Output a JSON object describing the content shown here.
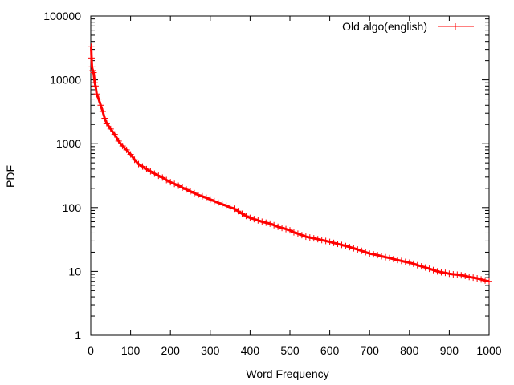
{
  "chart_data": {
    "type": "line",
    "title": "",
    "xlabel": "Word Frequency",
    "ylabel": "PDF",
    "xlim": [
      0,
      1000
    ],
    "ylim": [
      1,
      100000
    ],
    "yscale": "log",
    "grid": false,
    "legend_position": "top-right",
    "x_ticks": [
      0,
      100,
      200,
      300,
      400,
      500,
      600,
      700,
      800,
      900,
      1000
    ],
    "y_ticks": [
      1,
      10,
      100,
      1000,
      10000,
      100000
    ],
    "x_tick_labels": [
      "0",
      "100",
      "200",
      "300",
      "400",
      "500",
      "600",
      "700",
      "800",
      "900",
      "1000"
    ],
    "y_tick_labels": [
      "1",
      "10",
      "100",
      "1000",
      "10000",
      "100000"
    ],
    "series": [
      {
        "name": "Old algo(english)",
        "color": "#ff0000",
        "marker": "plus",
        "x": [
          1,
          2,
          3,
          5,
          7,
          10,
          12,
          15,
          20,
          25,
          30,
          35,
          40,
          50,
          60,
          70,
          80,
          90,
          100,
          110,
          120,
          130,
          140,
          150,
          160,
          170,
          180,
          190,
          200,
          210,
          220,
          230,
          240,
          250,
          260,
          270,
          280,
          290,
          300,
          310,
          320,
          330,
          340,
          350,
          360,
          370,
          380,
          390,
          400,
          410,
          420,
          430,
          440,
          450,
          460,
          470,
          480,
          490,
          500,
          510,
          520,
          530,
          540,
          550,
          560,
          570,
          580,
          590,
          600,
          610,
          620,
          630,
          640,
          650,
          660,
          670,
          680,
          690,
          700,
          710,
          720,
          730,
          740,
          750,
          760,
          770,
          780,
          790,
          800,
          810,
          820,
          830,
          840,
          850,
          860,
          870,
          880,
          890,
          900,
          910,
          920,
          930,
          940,
          950,
          960,
          970,
          980,
          990,
          1000
        ],
        "y": [
          33000,
          22000,
          16000,
          14000,
          13000,
          9000,
          8000,
          6000,
          5000,
          4000,
          3200,
          2500,
          2100,
          1700,
          1400,
          1100,
          920,
          800,
          680,
          560,
          480,
          440,
          400,
          370,
          340,
          315,
          295,
          270,
          250,
          235,
          220,
          205,
          192,
          180,
          168,
          158,
          150,
          142,
          134,
          126,
          119,
          113,
          107,
          101,
          96,
          88,
          80,
          74,
          69,
          66,
          63,
          60,
          58,
          56,
          53,
          50,
          48,
          46,
          44,
          41,
          39,
          37,
          35,
          34,
          33,
          32,
          31,
          30,
          29,
          28,
          27,
          26,
          25,
          24,
          23,
          22,
          21,
          20,
          19,
          18.5,
          18,
          17.3,
          16.7,
          16.2,
          15.6,
          15.1,
          14.6,
          14.1,
          13.7,
          13.2,
          12.5,
          12.0,
          11.5,
          11.0,
          10.5,
          10.0,
          9.7,
          9.5,
          9.2,
          9.0,
          8.9,
          8.7,
          8.5,
          8.2,
          8.0,
          7.8,
          7.5,
          7.2,
          7.0
        ]
      }
    ]
  }
}
